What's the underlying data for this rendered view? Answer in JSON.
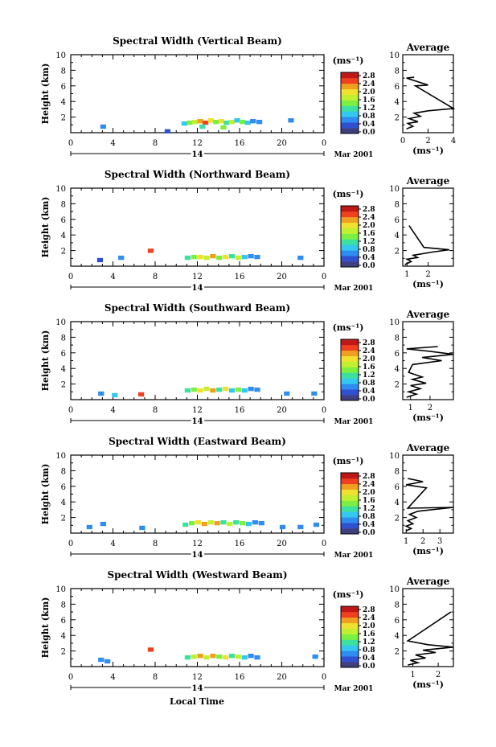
{
  "figure": {
    "xlabel": "Local Time",
    "date_label": "Mar 2001",
    "day_label": "14",
    "ylabel": "Height (km)",
    "avg_title": "Average",
    "avg_xlabel": "(ms⁻¹)",
    "cb_unit": "(ms⁻¹)",
    "colorbar_ticks": [
      "2.8",
      "2.4",
      "2.0",
      "1.6",
      "1.2",
      "0.8",
      "0.4",
      "0.0"
    ],
    "colormap": [
      "#404080",
      "#3050d0",
      "#2f8cf0",
      "#34c8f0",
      "#3ee0a0",
      "#7cf040",
      "#c0f030",
      "#f0e030",
      "#f0a020",
      "#f04020",
      "#c01818"
    ]
  },
  "chart_data": [
    {
      "type": "heatmap",
      "title": "Spectral Width (Vertical Beam)",
      "xlim": [
        0,
        24
      ],
      "ylim": [
        0,
        10
      ],
      "xticks": [
        "0",
        "4",
        "8",
        "12",
        "16",
        "20",
        "0"
      ],
      "yticks": [
        "2",
        "4",
        "6",
        "8",
        "10"
      ],
      "patches": [
        {
          "t": 2.8,
          "h": 0.6,
          "v": 0.5
        },
        {
          "t": 8.9,
          "h": 0.0,
          "v": 0.4
        },
        {
          "t": 10.5,
          "h": 1.0,
          "v": 1.0
        },
        {
          "t": 11.0,
          "h": 1.1,
          "v": 1.4
        },
        {
          "t": 11.5,
          "h": 1.2,
          "v": 1.8
        },
        {
          "t": 12.0,
          "h": 1.3,
          "v": 2.3
        },
        {
          "t": 12.5,
          "h": 1.1,
          "v": 2.6
        },
        {
          "t": 13.0,
          "h": 1.4,
          "v": 2.0
        },
        {
          "t": 13.5,
          "h": 1.2,
          "v": 1.6
        },
        {
          "t": 14.0,
          "h": 1.3,
          "v": 2.2
        },
        {
          "t": 14.5,
          "h": 1.1,
          "v": 1.2
        },
        {
          "t": 15.0,
          "h": 1.2,
          "v": 1.9
        },
        {
          "t": 15.5,
          "h": 1.4,
          "v": 1.0
        },
        {
          "t": 16.0,
          "h": 1.2,
          "v": 1.5
        },
        {
          "t": 16.5,
          "h": 1.1,
          "v": 0.9
        },
        {
          "t": 17.0,
          "h": 1.3,
          "v": 0.7
        },
        {
          "t": 17.6,
          "h": 1.2,
          "v": 0.6
        },
        {
          "t": 12.2,
          "h": 0.6,
          "v": 1.1
        },
        {
          "t": 14.2,
          "h": 0.5,
          "v": 1.4
        },
        {
          "t": 20.6,
          "h": 1.4,
          "v": 0.6
        }
      ],
      "average": {
        "xticks": [
          "0",
          "2",
          "4"
        ],
        "xlim": [
          0,
          4
        ],
        "profile": [
          [
            0.3,
            0.5
          ],
          [
            0.8,
            0.8
          ],
          [
            0.4,
            1.2
          ],
          [
            1.2,
            1.4
          ],
          [
            0.5,
            1.8
          ],
          [
            1.4,
            2.1
          ],
          [
            0.9,
            2.5
          ],
          [
            2.0,
            2.8
          ],
          [
            4.0,
            3.1
          ],
          [
            1.0,
            6.0
          ],
          [
            2.0,
            6.1
          ],
          [
            0.3,
            7.0
          ],
          [
            0.9,
            7.1
          ]
        ]
      }
    },
    {
      "type": "heatmap",
      "title": "Spectral Width (Northward Beam)",
      "xlim": [
        0,
        24
      ],
      "ylim": [
        0,
        10
      ],
      "xticks": [
        "0",
        "4",
        "8",
        "12",
        "16",
        "20",
        "0"
      ],
      "yticks": [
        "2",
        "4",
        "6",
        "8",
        "10"
      ],
      "patches": [
        {
          "t": 2.5,
          "h": 0.6,
          "v": 0.4
        },
        {
          "t": 4.5,
          "h": 0.9,
          "v": 0.6
        },
        {
          "t": 7.3,
          "h": 1.8,
          "v": 2.6
        },
        {
          "t": 10.8,
          "h": 0.9,
          "v": 1.2
        },
        {
          "t": 11.4,
          "h": 1.0,
          "v": 1.6
        },
        {
          "t": 12.0,
          "h": 1.0,
          "v": 2.2
        },
        {
          "t": 12.6,
          "h": 0.9,
          "v": 1.8
        },
        {
          "t": 13.2,
          "h": 1.1,
          "v": 2.4
        },
        {
          "t": 13.8,
          "h": 0.9,
          "v": 1.4
        },
        {
          "t": 14.4,
          "h": 1.0,
          "v": 2.0
        },
        {
          "t": 15.0,
          "h": 1.1,
          "v": 1.1
        },
        {
          "t": 15.6,
          "h": 0.9,
          "v": 1.7
        },
        {
          "t": 16.2,
          "h": 1.0,
          "v": 0.9
        },
        {
          "t": 16.8,
          "h": 1.1,
          "v": 0.7
        },
        {
          "t": 17.4,
          "h": 1.0,
          "v": 0.6
        },
        {
          "t": 21.5,
          "h": 0.9,
          "v": 0.6
        }
      ],
      "average": {
        "xticks": [
          "1",
          "2"
        ],
        "xlim": [
          0.8,
          3.2
        ],
        "profile": [
          [
            0.9,
            0.2
          ],
          [
            1.2,
            0.6
          ],
          [
            1.0,
            0.9
          ],
          [
            1.5,
            1.1
          ],
          [
            1.3,
            1.4
          ],
          [
            2.2,
            1.8
          ],
          [
            3.0,
            2.1
          ],
          [
            1.8,
            2.4
          ],
          [
            1.1,
            5.2
          ]
        ]
      }
    },
    {
      "type": "heatmap",
      "title": "Spectral Width (Southward Beam)",
      "xlim": [
        0,
        24
      ],
      "ylim": [
        0,
        10
      ],
      "xticks": [
        "0",
        "4",
        "8",
        "12",
        "16",
        "20",
        "0"
      ],
      "yticks": [
        "2",
        "4",
        "6",
        "8",
        "10"
      ],
      "patches": [
        {
          "t": 2.6,
          "h": 0.6,
          "v": 0.5
        },
        {
          "t": 3.9,
          "h": 0.4,
          "v": 0.8
        },
        {
          "t": 6.4,
          "h": 0.5,
          "v": 2.6
        },
        {
          "t": 10.8,
          "h": 1.0,
          "v": 1.2
        },
        {
          "t": 11.4,
          "h": 1.1,
          "v": 1.6
        },
        {
          "t": 12.0,
          "h": 1.0,
          "v": 2.1
        },
        {
          "t": 12.6,
          "h": 1.2,
          "v": 1.8
        },
        {
          "t": 13.2,
          "h": 1.0,
          "v": 2.4
        },
        {
          "t": 13.8,
          "h": 1.1,
          "v": 1.3
        },
        {
          "t": 14.4,
          "h": 1.2,
          "v": 2.0
        },
        {
          "t": 15.0,
          "h": 1.0,
          "v": 1.0
        },
        {
          "t": 15.6,
          "h": 1.1,
          "v": 1.6
        },
        {
          "t": 16.2,
          "h": 1.0,
          "v": 0.9
        },
        {
          "t": 16.8,
          "h": 1.2,
          "v": 0.7
        },
        {
          "t": 17.4,
          "h": 1.1,
          "v": 0.6
        },
        {
          "t": 20.2,
          "h": 0.6,
          "v": 0.5
        },
        {
          "t": 22.8,
          "h": 0.6,
          "v": 0.5
        }
      ],
      "average": {
        "xticks": [
          "1",
          "2"
        ],
        "xlim": [
          0.6,
          3.2
        ],
        "profile": [
          [
            0.8,
            0.3
          ],
          [
            1.3,
            0.7
          ],
          [
            0.9,
            1.0
          ],
          [
            1.5,
            1.4
          ],
          [
            1.0,
            1.8
          ],
          [
            1.8,
            2.1
          ],
          [
            1.1,
            2.6
          ],
          [
            1.6,
            2.9
          ],
          [
            0.9,
            3.5
          ],
          [
            1.1,
            4.5
          ],
          [
            2.6,
            5.0
          ],
          [
            1.6,
            5.4
          ],
          [
            3.2,
            5.8
          ],
          [
            2.0,
            6.2
          ],
          [
            0.8,
            6.5
          ],
          [
            2.4,
            6.8
          ]
        ]
      }
    },
    {
      "type": "heatmap",
      "title": "Spectral Width (Eastward Beam)",
      "xlim": [
        0,
        24
      ],
      "ylim": [
        0,
        10
      ],
      "xticks": [
        "0",
        "4",
        "8",
        "12",
        "16",
        "20",
        "0"
      ],
      "yticks": [
        "2",
        "4",
        "6",
        "8",
        "10"
      ],
      "patches": [
        {
          "t": 1.5,
          "h": 0.6,
          "v": 0.5
        },
        {
          "t": 2.8,
          "h": 1.0,
          "v": 0.5
        },
        {
          "t": 6.5,
          "h": 0.5,
          "v": 0.6
        },
        {
          "t": 10.6,
          "h": 0.9,
          "v": 1.1
        },
        {
          "t": 11.2,
          "h": 1.1,
          "v": 1.6
        },
        {
          "t": 11.8,
          "h": 1.2,
          "v": 2.2
        },
        {
          "t": 12.4,
          "h": 1.0,
          "v": 2.5
        },
        {
          "t": 13.0,
          "h": 1.2,
          "v": 1.7
        },
        {
          "t": 13.6,
          "h": 1.1,
          "v": 2.3
        },
        {
          "t": 14.2,
          "h": 1.2,
          "v": 1.3
        },
        {
          "t": 14.8,
          "h": 1.0,
          "v": 1.9
        },
        {
          "t": 15.4,
          "h": 1.2,
          "v": 1.1
        },
        {
          "t": 16.0,
          "h": 1.1,
          "v": 1.6
        },
        {
          "t": 16.6,
          "h": 1.0,
          "v": 0.8
        },
        {
          "t": 17.2,
          "h": 1.2,
          "v": 0.7
        },
        {
          "t": 17.8,
          "h": 1.1,
          "v": 0.6
        },
        {
          "t": 19.8,
          "h": 0.6,
          "v": 0.5
        },
        {
          "t": 21.5,
          "h": 0.6,
          "v": 0.5
        },
        {
          "t": 23.0,
          "h": 0.9,
          "v": 0.6
        }
      ],
      "average": {
        "xticks": [
          "1",
          "2",
          "3"
        ],
        "xlim": [
          0.8,
          3.8
        ],
        "profile": [
          [
            1.0,
            0.3
          ],
          [
            1.3,
            0.6
          ],
          [
            1.0,
            0.9
          ],
          [
            1.4,
            1.2
          ],
          [
            1.1,
            1.6
          ],
          [
            1.6,
            2.0
          ],
          [
            1.2,
            2.4
          ],
          [
            1.7,
            2.8
          ],
          [
            3.8,
            3.3
          ],
          [
            1.1,
            3.2
          ],
          [
            2.2,
            5.8
          ],
          [
            1.0,
            6.2
          ],
          [
            2.0,
            6.6
          ],
          [
            1.1,
            7.0
          ]
        ]
      }
    },
    {
      "type": "heatmap",
      "title": "Spectral Width (Westward Beam)",
      "xlim": [
        0,
        24
      ],
      "ylim": [
        0,
        10
      ],
      "xticks": [
        "0",
        "4",
        "8",
        "12",
        "16",
        "20",
        "0"
      ],
      "yticks": [
        "2",
        "4",
        "6",
        "8",
        "10"
      ],
      "patches": [
        {
          "t": 2.6,
          "h": 0.7,
          "v": 0.5
        },
        {
          "t": 3.2,
          "h": 0.5,
          "v": 0.6
        },
        {
          "t": 7.3,
          "h": 2.0,
          "v": 2.6
        },
        {
          "t": 10.8,
          "h": 1.0,
          "v": 1.2
        },
        {
          "t": 11.4,
          "h": 1.1,
          "v": 1.7
        },
        {
          "t": 12.0,
          "h": 1.2,
          "v": 2.3
        },
        {
          "t": 12.6,
          "h": 1.0,
          "v": 1.8
        },
        {
          "t": 13.2,
          "h": 1.2,
          "v": 2.4
        },
        {
          "t": 13.8,
          "h": 1.1,
          "v": 1.4
        },
        {
          "t": 14.4,
          "h": 1.0,
          "v": 2.0
        },
        {
          "t": 15.0,
          "h": 1.2,
          "v": 1.1
        },
        {
          "t": 15.6,
          "h": 1.1,
          "v": 1.7
        },
        {
          "t": 16.2,
          "h": 1.0,
          "v": 0.9
        },
        {
          "t": 16.8,
          "h": 1.2,
          "v": 0.7
        },
        {
          "t": 17.4,
          "h": 1.0,
          "v": 0.6
        },
        {
          "t": 22.9,
          "h": 1.1,
          "v": 0.6
        }
      ],
      "average": {
        "xticks": [
          "1",
          "2"
        ],
        "xlim": [
          0.6,
          2.6
        ],
        "profile": [
          [
            0.8,
            0.2
          ],
          [
            1.2,
            0.5
          ],
          [
            0.9,
            0.8
          ],
          [
            1.5,
            1.1
          ],
          [
            1.1,
            1.5
          ],
          [
            1.9,
            1.8
          ],
          [
            1.4,
            2.1
          ],
          [
            2.6,
            2.5
          ],
          [
            1.6,
            2.8
          ],
          [
            0.8,
            3.3
          ],
          [
            2.5,
            7.0
          ]
        ]
      }
    }
  ]
}
